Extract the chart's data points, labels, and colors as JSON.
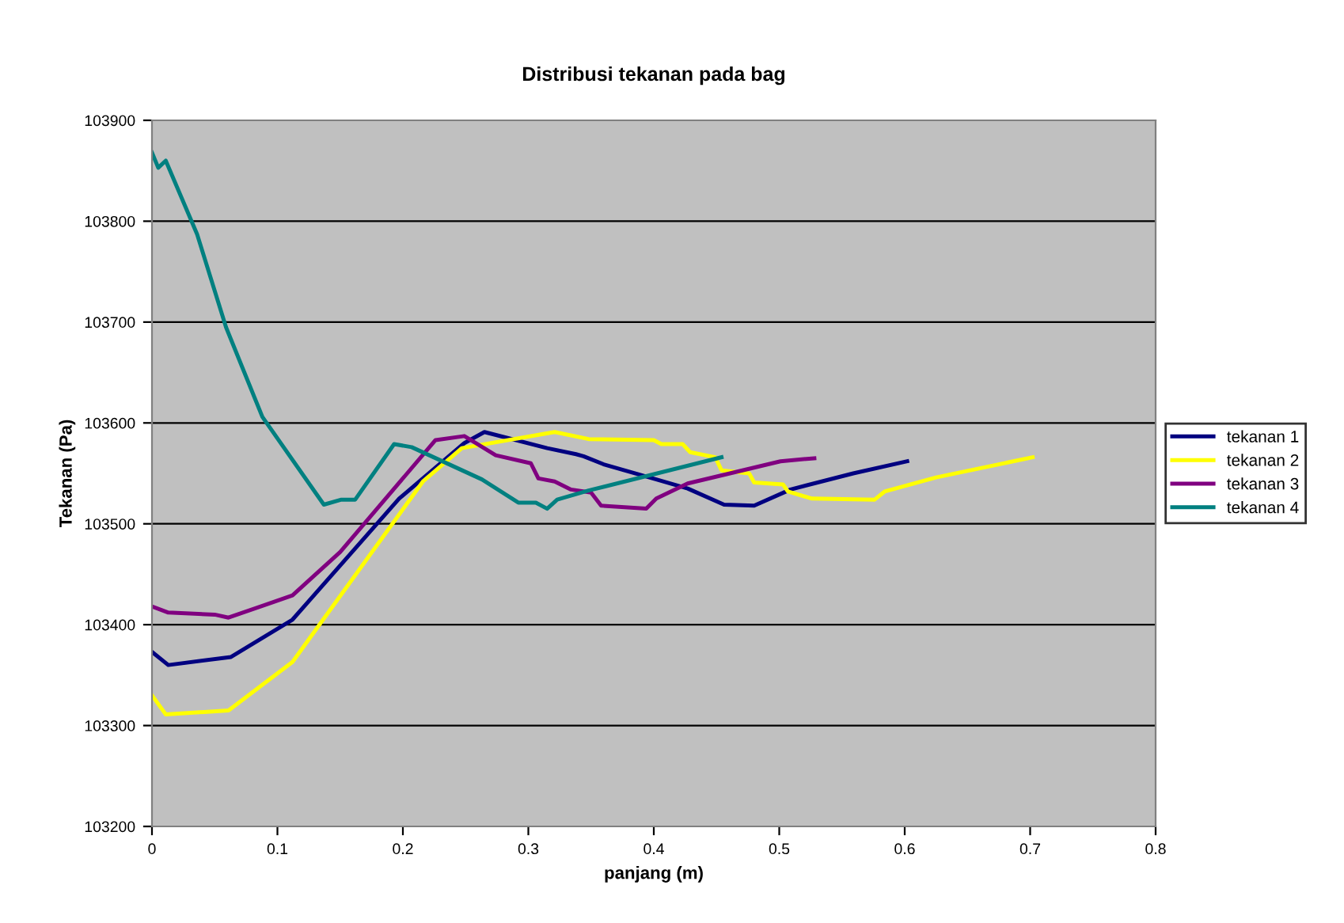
{
  "chart_data": {
    "type": "line",
    "title": "Distribusi tekanan pada bag",
    "xlabel": "panjang (m)",
    "ylabel": "Tekanan (Pa)",
    "xlim": [
      0,
      0.8
    ],
    "xticks": [
      0,
      0.1,
      0.2,
      0.3,
      0.4,
      0.5,
      0.6,
      0.7,
      0.8
    ],
    "ylim": [
      103200,
      103900
    ],
    "yticks": [
      103200,
      103300,
      103400,
      103500,
      103600,
      103700,
      103800,
      103900
    ],
    "grid": "y",
    "legend": "right",
    "marker": "none",
    "line_style": "solid",
    "series": [
      {
        "name": "tekanan 1",
        "color": "#000080",
        "x": [
          0,
          0.013,
          0.063,
          0.112,
          0.197,
          0.249,
          0.265,
          0.315,
          0.338,
          0.344,
          0.36,
          0.402,
          0.427,
          0.456,
          0.48,
          0.509,
          0.559,
          0.602
        ],
        "values": [
          103373,
          103360,
          103368,
          103405,
          103525,
          103580,
          103591,
          103575,
          103569,
          103567,
          103559,
          103544,
          103535,
          103519,
          103518,
          103534,
          103550,
          103562
        ]
      },
      {
        "name": "tekanan 2",
        "color": "#ffff00",
        "x": [
          0,
          0.011,
          0.061,
          0.112,
          0.216,
          0.247,
          0.321,
          0.348,
          0.4,
          0.406,
          0.423,
          0.429,
          0.449,
          0.454,
          0.476,
          0.48,
          0.503,
          0.507,
          0.526,
          0.576,
          0.584,
          0.625,
          0.702
        ],
        "values": [
          103330,
          103311,
          103315,
          103363,
          103542,
          103575,
          103591,
          103584,
          103583,
          103579,
          103579,
          103571,
          103566,
          103553,
          103550,
          103541,
          103539,
          103532,
          103525,
          103524,
          103532,
          103546,
          103566
        ]
      },
      {
        "name": "tekanan 3",
        "color": "#800080",
        "x": [
          0,
          0.013,
          0.05,
          0.061,
          0.112,
          0.15,
          0.226,
          0.249,
          0.274,
          0.302,
          0.308,
          0.321,
          0.334,
          0.35,
          0.358,
          0.394,
          0.402,
          0.427,
          0.501,
          0.528
        ],
        "values": [
          103418,
          103412,
          103410,
          103407,
          103429,
          103472,
          103583,
          103587,
          103568,
          103560,
          103545,
          103542,
          103534,
          103531,
          103518,
          103515,
          103525,
          103540,
          103562,
          103565
        ]
      },
      {
        "name": "tekanan 4",
        "color": "#008080",
        "x": [
          0,
          0.005,
          0.011,
          0.036,
          0.059,
          0.088,
          0.137,
          0.151,
          0.162,
          0.193,
          0.207,
          0.263,
          0.292,
          0.306,
          0.315,
          0.323,
          0.348,
          0.454
        ],
        "values": [
          103868,
          103853,
          103860,
          103787,
          103695,
          103606,
          103519,
          103524,
          103524,
          103579,
          103576,
          103544,
          103521,
          103521,
          103515,
          103524,
          103533,
          103566
        ]
      }
    ]
  }
}
